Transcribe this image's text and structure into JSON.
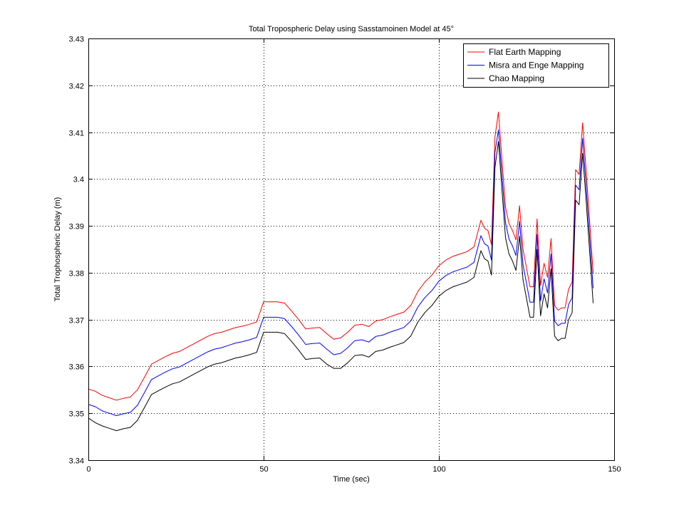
{
  "chart_data": {
    "type": "line",
    "title": "Total Tropospheric Delay using Sasstamoinen Model at 45°",
    "xlabel": "Time (sec)",
    "ylabel": "Total Trophospheric Delay (m)",
    "xlim": [
      0,
      150
    ],
    "ylim": [
      3.34,
      3.43
    ],
    "xticks": [
      0,
      50,
      100,
      150
    ],
    "yticks": [
      3.34,
      3.35,
      3.36,
      3.37,
      3.38,
      3.39,
      3.4,
      3.41,
      3.42,
      3.43
    ],
    "xtick_labels": [
      "0",
      "50",
      "100",
      "150"
    ],
    "ytick_labels": [
      "3.34",
      "3.35",
      "3.36",
      "3.37",
      "3.38",
      "3.39",
      "3.4",
      "3.41",
      "3.42",
      "3.43"
    ],
    "grid": true,
    "legend_position": "top-right",
    "x": [
      0,
      2,
      4,
      6,
      8,
      10,
      12,
      14,
      16,
      18,
      20,
      22,
      24,
      26,
      28,
      30,
      32,
      34,
      36,
      38,
      40,
      42,
      44,
      46,
      48,
      50,
      52,
      54,
      56,
      58,
      60,
      62,
      64,
      66,
      68,
      70,
      72,
      74,
      76,
      78,
      80,
      82,
      84,
      86,
      88,
      90,
      92,
      94,
      96,
      98,
      100,
      102,
      104,
      106,
      108,
      110,
      112,
      113,
      114,
      115,
      116,
      117,
      118,
      119,
      120,
      121,
      122,
      123,
      124,
      125,
      126,
      127,
      128,
      129,
      130,
      131,
      132,
      133,
      134,
      135,
      136,
      137,
      138,
      139,
      140,
      141,
      142,
      143,
      144
    ],
    "series": [
      {
        "name": "Flat Earth Mapping",
        "color": "#ff0000",
        "values": [
          3.3552,
          3.3547,
          3.3538,
          3.3533,
          3.3528,
          3.3532,
          3.3535,
          3.355,
          3.3577,
          3.3605,
          3.3613,
          3.3621,
          3.3628,
          3.3632,
          3.364,
          3.3648,
          3.3656,
          3.3664,
          3.367,
          3.3673,
          3.3678,
          3.3683,
          3.3686,
          3.369,
          3.3695,
          3.3738,
          3.3738,
          3.3738,
          3.3735,
          3.3718,
          3.37,
          3.368,
          3.3682,
          3.3683,
          3.367,
          3.3658,
          3.3661,
          3.3673,
          3.3688,
          3.369,
          3.3685,
          3.3697,
          3.37,
          3.3706,
          3.3711,
          3.3716,
          3.373,
          3.376,
          3.378,
          3.3795,
          3.3815,
          3.3827,
          3.3835,
          3.384,
          3.3845,
          3.3855,
          3.3912,
          3.3895,
          3.389,
          3.386,
          3.409,
          3.4143,
          3.404,
          3.394,
          3.3905,
          3.389,
          3.387,
          3.3943,
          3.385,
          3.381,
          3.377,
          3.377,
          3.3915,
          3.3773,
          3.382,
          3.379,
          3.3873,
          3.373,
          3.372,
          3.3725,
          3.3725,
          3.3765,
          3.378,
          3.402,
          3.401,
          3.412,
          3.402,
          3.391,
          3.38
        ]
      },
      {
        "name": "Misra and Enge Mapping",
        "color": "#0000ff",
        "values": [
          3.3519,
          3.3514,
          3.3505,
          3.35,
          3.3495,
          3.3499,
          3.3502,
          3.3517,
          3.3544,
          3.3572,
          3.358,
          3.3588,
          3.3595,
          3.3599,
          3.3607,
          3.3615,
          3.3623,
          3.3631,
          3.3637,
          3.364,
          3.3645,
          3.365,
          3.3653,
          3.3657,
          3.3662,
          3.3705,
          3.3705,
          3.3705,
          3.3702,
          3.3685,
          3.3667,
          3.3647,
          3.3649,
          3.365,
          3.3637,
          3.3625,
          3.3628,
          3.364,
          3.3655,
          3.3657,
          3.3652,
          3.3664,
          3.3667,
          3.3673,
          3.3678,
          3.3683,
          3.3697,
          3.3727,
          3.3747,
          3.3762,
          3.3782,
          3.3794,
          3.3802,
          3.3807,
          3.3812,
          3.3822,
          3.3879,
          3.3862,
          3.3857,
          3.3827,
          3.4057,
          3.4105,
          3.4007,
          3.3907,
          3.3872,
          3.3857,
          3.3837,
          3.391,
          3.3817,
          3.3777,
          3.3737,
          3.3737,
          3.3882,
          3.374,
          3.3787,
          3.3757,
          3.384,
          3.3697,
          3.3687,
          3.3692,
          3.3692,
          3.3732,
          3.3747,
          3.3987,
          3.3977,
          3.4087,
          3.3987,
          3.3877,
          3.3767
        ]
      },
      {
        "name": "Chao Mapping",
        "color": "#000000",
        "values": [
          3.349,
          3.348,
          3.3473,
          3.3468,
          3.3463,
          3.3467,
          3.347,
          3.3485,
          3.3512,
          3.354,
          3.3548,
          3.3556,
          3.3563,
          3.3567,
          3.3575,
          3.3583,
          3.3591,
          3.3599,
          3.3605,
          3.3608,
          3.3613,
          3.3618,
          3.3621,
          3.3625,
          3.363,
          3.3673,
          3.3673,
          3.3673,
          3.367,
          3.3653,
          3.3635,
          3.3615,
          3.3617,
          3.3618,
          3.3605,
          3.3596,
          3.3596,
          3.3608,
          3.3623,
          3.3625,
          3.362,
          3.3632,
          3.3635,
          3.3641,
          3.3646,
          3.3651,
          3.3665,
          3.3695,
          3.3715,
          3.373,
          3.375,
          3.3762,
          3.377,
          3.3775,
          3.378,
          3.379,
          3.3847,
          3.383,
          3.3825,
          3.3795,
          3.4025,
          3.408,
          3.3975,
          3.3875,
          3.384,
          3.3825,
          3.3805,
          3.3878,
          3.3785,
          3.3745,
          3.3705,
          3.3705,
          3.385,
          3.3708,
          3.3755,
          3.3725,
          3.3808,
          3.3665,
          3.3655,
          3.366,
          3.366,
          3.37,
          3.3715,
          3.3955,
          3.3945,
          3.4055,
          3.3955,
          3.3845,
          3.3735
        ]
      }
    ]
  }
}
